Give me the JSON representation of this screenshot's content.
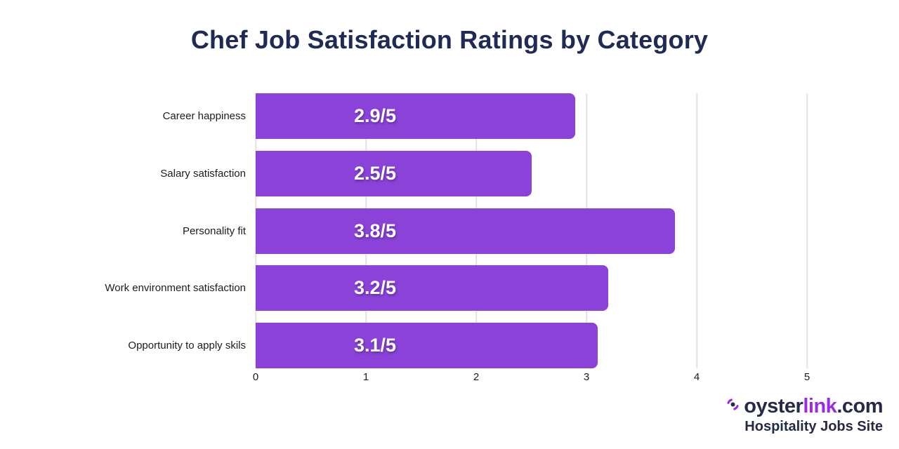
{
  "title": "Chef Job Satisfaction Ratings by Category",
  "chart_data": {
    "type": "bar",
    "orientation": "horizontal",
    "title": "Chef Job Satisfaction Ratings by Category",
    "categories": [
      "Career happiness",
      "Salary satisfaction",
      "Personality fit",
      "Work environment satisfaction",
      "Opportunity to apply skils"
    ],
    "values": [
      2.9,
      2.5,
      3.8,
      3.2,
      3.1
    ],
    "bar_labels": [
      "2.9/5",
      "2.5/5",
      "3.8/5",
      "3.2/5",
      "3.1/5"
    ],
    "xlabel": "",
    "ylabel": "",
    "xlim": [
      0,
      5
    ],
    "x_ticks": [
      0,
      1,
      2,
      3,
      4,
      5
    ],
    "grid": true,
    "legend": false,
    "bar_color": "#8a42d9",
    "bar_label_color": "#ffffff",
    "gridline_color": "#e2e2e2"
  },
  "footer": {
    "brand_icon": "oysterlink-wave-icon",
    "brand_oyster": "oyster",
    "brand_link": "link",
    "brand_tld": ".com",
    "tagline": "Hospitality Jobs Site"
  },
  "colors": {
    "title": "#1f2b56",
    "bar": "#8a42d9",
    "brand_dark": "#252b47",
    "brand_purple": "#9c2be0",
    "background": "#ffffff"
  }
}
